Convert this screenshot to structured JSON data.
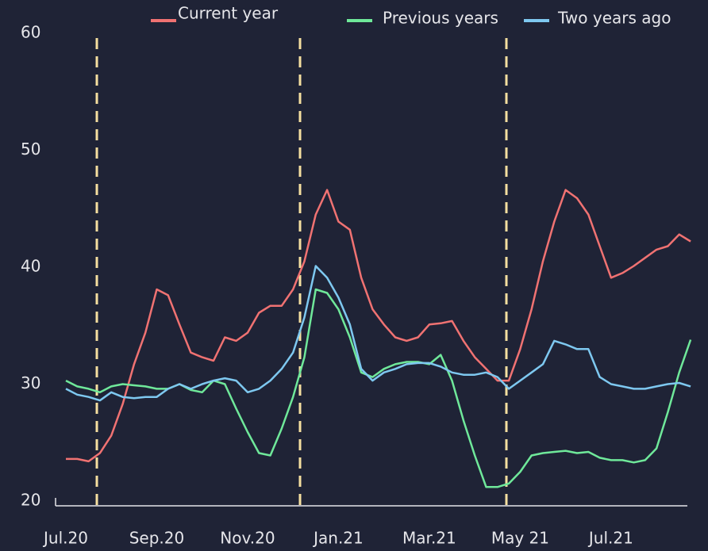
{
  "chart_data": {
    "type": "line",
    "categories": [
      "Jul.20",
      null,
      null,
      null,
      null,
      null,
      null,
      null,
      "Sep.20",
      null,
      null,
      null,
      null,
      null,
      null,
      null,
      "Nov.20",
      null,
      null,
      null,
      null,
      null,
      null,
      null,
      "Jan.21",
      null,
      null,
      null,
      null,
      null,
      null,
      null,
      "Mar.21",
      null,
      null,
      null,
      null,
      null,
      null,
      null,
      "May 21",
      null,
      null,
      null,
      null,
      null,
      null,
      null,
      "Jul.21",
      null,
      null,
      null,
      null,
      null,
      null,
      null
    ],
    "series": [
      {
        "name": "Current year",
        "color": "#f07272",
        "values": [
          23.6,
          23.6,
          23.4,
          24.1,
          25.6,
          28.3,
          31.7,
          34.4,
          38.1,
          37.6,
          35.1,
          32.7,
          32.3,
          32.0,
          34.0,
          33.7,
          34.4,
          36.1,
          36.7,
          36.7,
          38.1,
          40.5,
          44.5,
          46.6,
          43.9,
          43.2,
          39.1,
          36.4,
          35.1,
          34.0,
          33.7,
          34.0,
          35.1,
          35.2,
          35.4,
          33.7,
          32.3,
          31.3,
          30.3,
          30.3,
          33.0,
          36.4,
          40.5,
          43.9,
          46.6,
          45.9,
          44.5,
          41.8,
          39.1,
          39.5,
          40.1,
          40.8,
          41.5,
          41.8,
          42.8,
          42.2
        ]
      },
      {
        "name": "Previous years",
        "color": "#6fe89a",
        "values": [
          30.3,
          29.8,
          29.6,
          29.3,
          29.8,
          30.0,
          29.9,
          29.8,
          29.6,
          29.6,
          30.0,
          29.5,
          29.3,
          30.3,
          30.0,
          27.9,
          25.9,
          24.1,
          23.9,
          26.2,
          28.9,
          32.3,
          38.1,
          37.8,
          36.4,
          34.0,
          31.0,
          30.6,
          31.3,
          31.7,
          31.9,
          31.9,
          31.7,
          32.5,
          30.3,
          26.9,
          23.9,
          21.2,
          21.2,
          21.5,
          22.5,
          23.9,
          24.1,
          24.2,
          24.3,
          24.1,
          24.2,
          23.7,
          23.5,
          23.5,
          23.3,
          23.5,
          24.5,
          27.6,
          31.0,
          33.8
        ]
      },
      {
        "name": "Two years ago",
        "color": "#7ec8f0",
        "values": [
          29.6,
          29.1,
          28.9,
          28.6,
          29.3,
          28.9,
          28.8,
          28.9,
          28.9,
          29.6,
          30.0,
          29.6,
          30.0,
          30.3,
          30.5,
          30.3,
          29.3,
          29.6,
          30.3,
          31.3,
          32.7,
          35.7,
          40.1,
          39.1,
          37.4,
          35.1,
          31.3,
          30.3,
          31.0,
          31.3,
          31.7,
          31.8,
          31.8,
          31.5,
          31.0,
          30.8,
          30.8,
          31.0,
          30.6,
          29.6,
          30.3,
          31.0,
          31.7,
          33.7,
          33.4,
          33.0,
          33.0,
          30.6,
          30.0,
          29.8,
          29.6,
          29.6,
          29.8,
          30.0,
          30.1,
          29.8
        ]
      }
    ],
    "ylim": [
      20,
      60
    ],
    "yticks": [
      20,
      30,
      40,
      50,
      60
    ],
    "grid": false,
    "legend": "top"
  }
}
